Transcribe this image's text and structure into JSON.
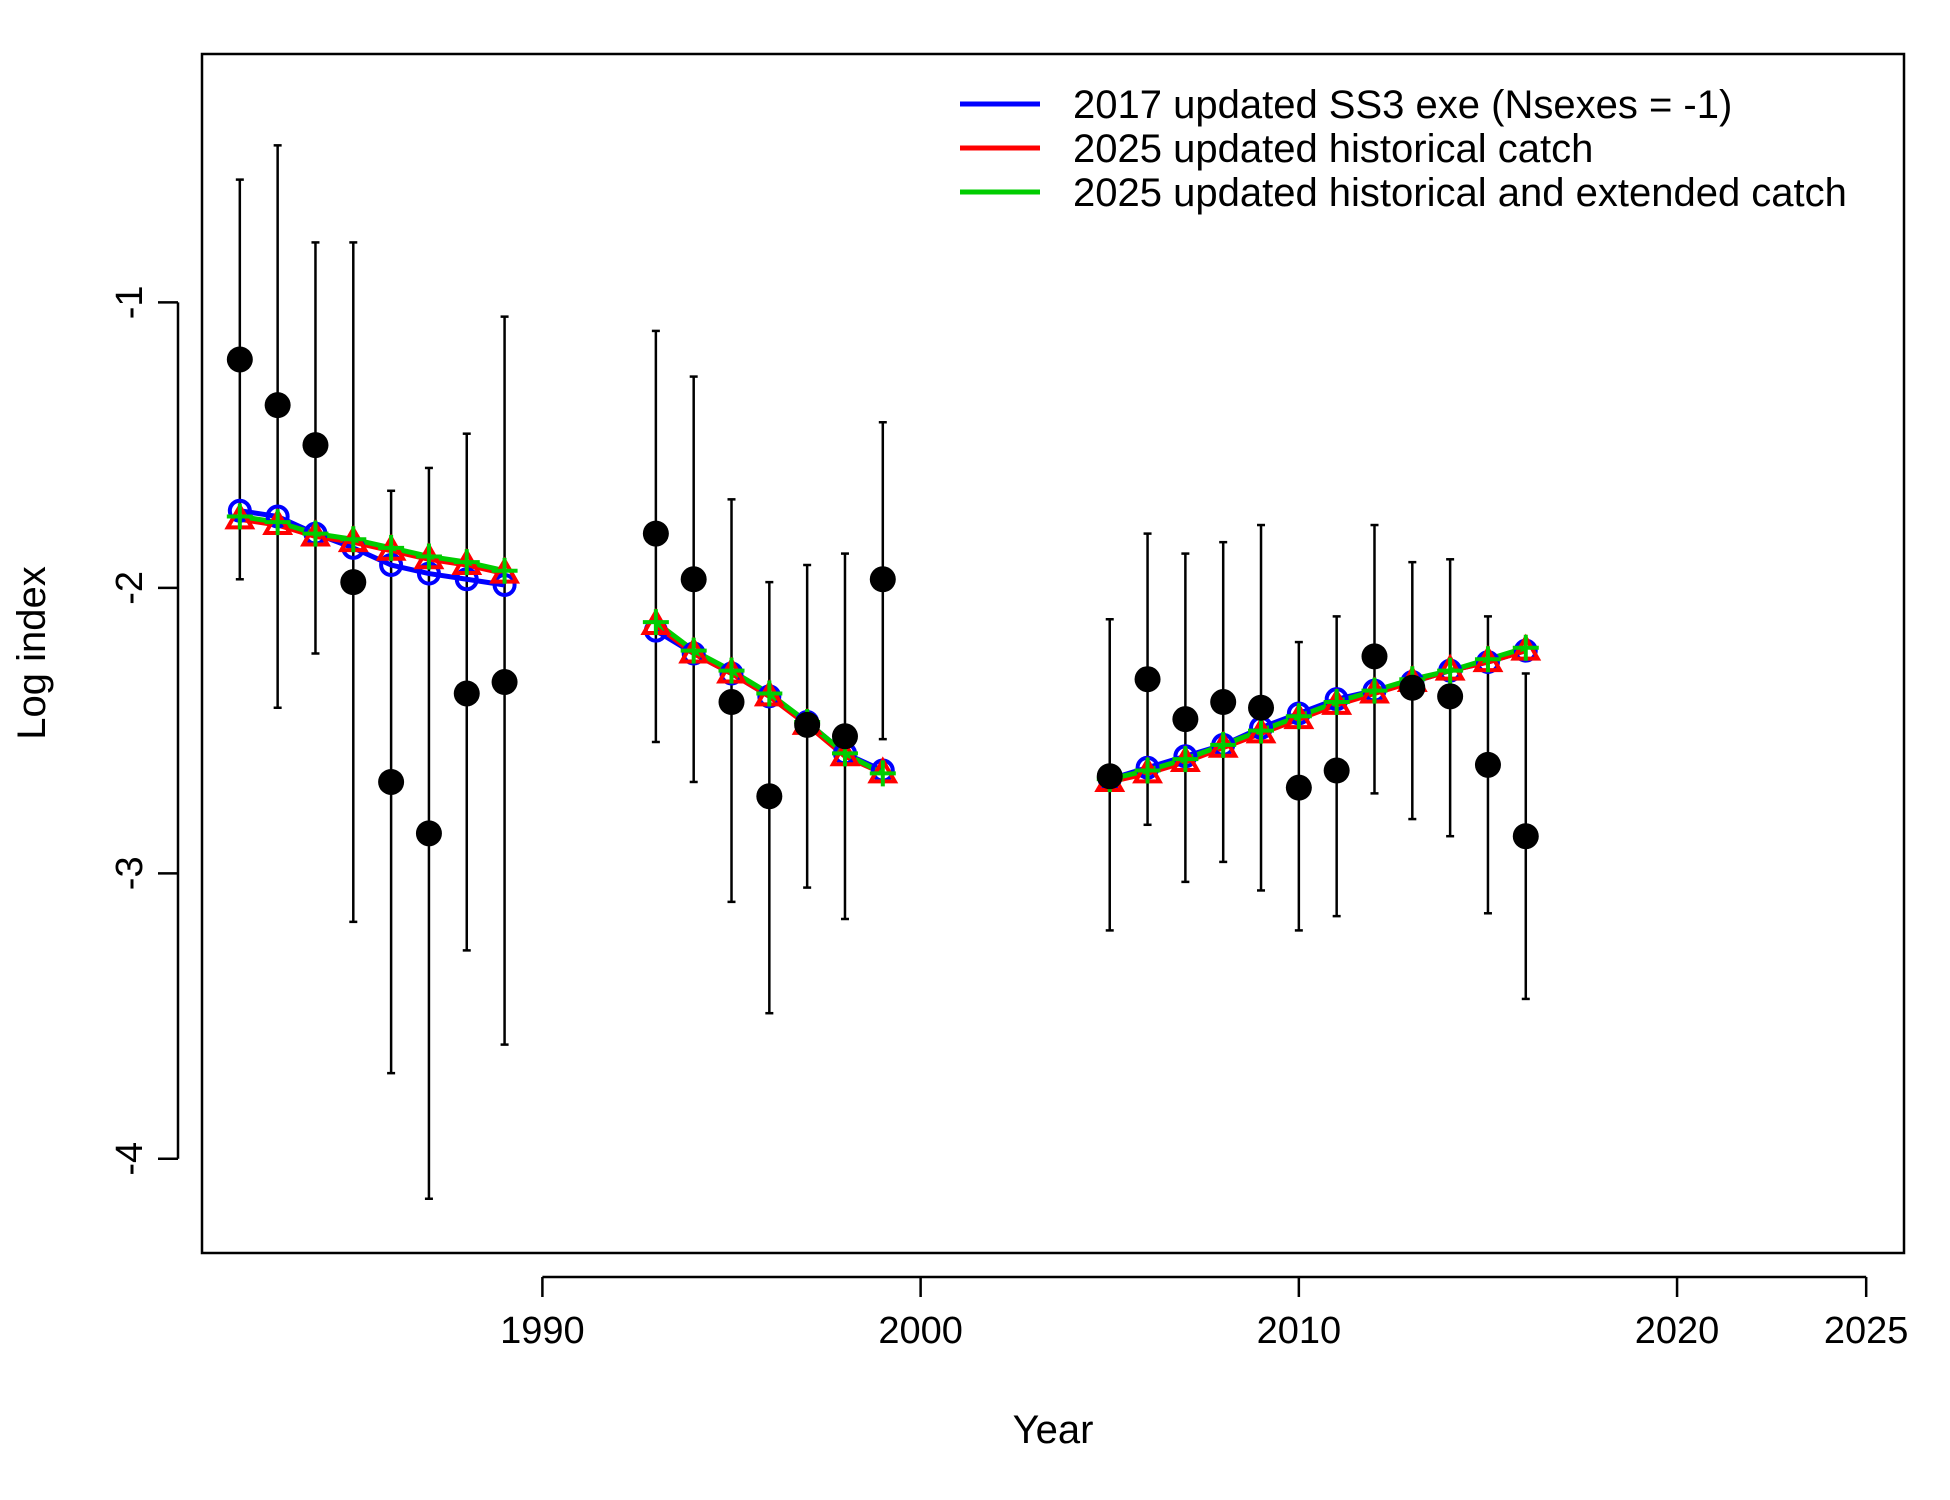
{
  "chart_data": {
    "type": "line",
    "xlabel": "Year",
    "ylabel": "Log index",
    "xlim": [
      1981,
      2026
    ],
    "ylim": [
      -4.33,
      -0.13
    ],
    "x_ticks": [
      1990,
      2000,
      2010,
      2020,
      2025
    ],
    "x_tick_labels": [
      "1990",
      "2000",
      "2010",
      "2020",
      "2025"
    ],
    "y_ticks": [
      -1,
      -2,
      -3,
      -4
    ],
    "y_tick_labels": [
      "-1",
      "-2",
      "-3",
      "-4"
    ],
    "legend_position": "top-right",
    "observed": {
      "x": [
        1982,
        1983,
        1984,
        1985,
        1986,
        1987,
        1988,
        1989,
        1993,
        1994,
        1995,
        1996,
        1997,
        1998,
        1999,
        2005,
        2006,
        2007,
        2008,
        2009,
        2010,
        2011,
        2012,
        2013,
        2014,
        2015,
        2016
      ],
      "y": [
        -1.2,
        -1.36,
        -1.5,
        -1.98,
        -2.68,
        -2.86,
        -2.37,
        -2.33,
        -1.81,
        -1.97,
        -2.4,
        -2.73,
        -2.48,
        -2.52,
        -1.97,
        -2.66,
        -2.32,
        -2.46,
        -2.4,
        -2.42,
        -2.7,
        -2.64,
        -2.24,
        -2.35,
        -2.38,
        -2.62,
        -2.87
      ],
      "lower": [
        -1.97,
        -2.42,
        -2.23,
        -3.17,
        -3.7,
        -4.14,
        -3.27,
        -3.6,
        -2.54,
        -2.68,
        -3.1,
        -3.49,
        -3.05,
        -3.16,
        -2.53,
        -3.2,
        -2.83,
        -3.03,
        -2.96,
        -3.06,
        -3.2,
        -3.15,
        -2.72,
        -2.81,
        -2.87,
        -3.14,
        -3.44
      ],
      "upper": [
        -0.57,
        -0.45,
        -0.79,
        -0.79,
        -1.66,
        -1.58,
        -1.46,
        -1.05,
        -1.1,
        -1.26,
        -1.69,
        -1.98,
        -1.92,
        -1.88,
        -1.42,
        -2.11,
        -1.81,
        -1.88,
        -1.84,
        -1.78,
        -2.19,
        -2.1,
        -1.78,
        -1.91,
        -1.9,
        -2.1,
        -2.3
      ]
    },
    "series": [
      {
        "name": "2017 updated SS3 exe (Nsexes = -1)",
        "color": "#0000ff",
        "marker": "circle",
        "segments": [
          {
            "x": [
              1982,
              1983,
              1984,
              1985,
              1986,
              1987,
              1988,
              1989
            ],
            "y": [
              -1.73,
              -1.75,
              -1.81,
              -1.86,
              -1.92,
              -1.95,
              -1.97,
              -1.99
            ]
          },
          {
            "x": [
              1993,
              1994,
              1995,
              1996,
              1997,
              1998,
              1999
            ],
            "y": [
              -2.15,
              -2.23,
              -2.3,
              -2.38,
              -2.47,
              -2.58,
              -2.64
            ]
          },
          {
            "x": [
              2005,
              2006,
              2007,
              2008,
              2009,
              2010,
              2011,
              2012,
              2013,
              2014,
              2015,
              2016
            ],
            "y": [
              -2.67,
              -2.63,
              -2.59,
              -2.55,
              -2.49,
              -2.44,
              -2.39,
              -2.36,
              -2.33,
              -2.29,
              -2.26,
              -2.22
            ]
          }
        ]
      },
      {
        "name": "2025 updated historical catch",
        "color": "#ff0000",
        "marker": "triangle",
        "segments": [
          {
            "x": [
              1982,
              1983,
              1984,
              1985,
              1986,
              1987,
              1988,
              1989
            ],
            "y": [
              -1.76,
              -1.78,
              -1.82,
              -1.84,
              -1.87,
              -1.9,
              -1.92,
              -1.95
            ]
          },
          {
            "x": [
              1993,
              1994,
              1995,
              1996,
              1997,
              1998,
              1999
            ],
            "y": [
              -2.13,
              -2.23,
              -2.3,
              -2.38,
              -2.48,
              -2.59,
              -2.65
            ]
          },
          {
            "x": [
              2005,
              2006,
              2007,
              2008,
              2009,
              2010,
              2011,
              2012,
              2013,
              2014,
              2015,
              2016
            ],
            "y": [
              -2.68,
              -2.65,
              -2.61,
              -2.56,
              -2.51,
              -2.46,
              -2.41,
              -2.37,
              -2.33,
              -2.29,
              -2.26,
              -2.22
            ]
          }
        ]
      },
      {
        "name": "2025 updated historical and extended catch",
        "color": "#00cd00",
        "marker": "plus",
        "segments": [
          {
            "x": [
              1982,
              1983,
              1984,
              1985,
              1986,
              1987,
              1988,
              1989
            ],
            "y": [
              -1.75,
              -1.77,
              -1.81,
              -1.83,
              -1.86,
              -1.89,
              -1.91,
              -1.94
            ]
          },
          {
            "x": [
              1993,
              1994,
              1995,
              1996,
              1997,
              1998,
              1999
            ],
            "y": [
              -2.12,
              -2.22,
              -2.29,
              -2.37,
              -2.47,
              -2.58,
              -2.65
            ]
          },
          {
            "x": [
              2005,
              2006,
              2007,
              2008,
              2009,
              2010,
              2011,
              2012,
              2013,
              2014,
              2015,
              2016
            ],
            "y": [
              -2.67,
              -2.64,
              -2.6,
              -2.55,
              -2.5,
              -2.45,
              -2.4,
              -2.36,
              -2.32,
              -2.29,
              -2.25,
              -2.21
            ]
          }
        ]
      }
    ]
  }
}
